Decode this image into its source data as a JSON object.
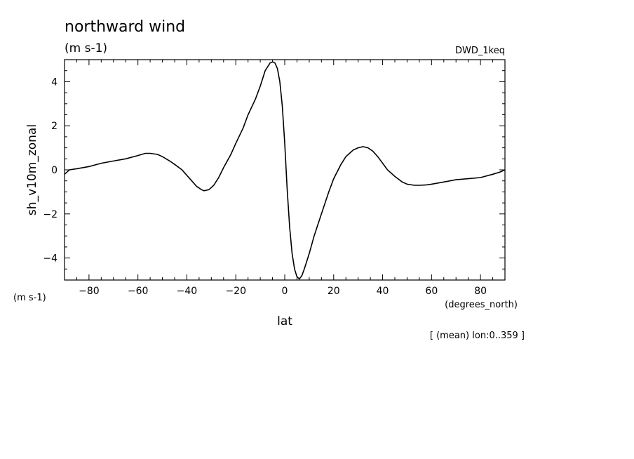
{
  "chart_data": {
    "type": "line",
    "title": "northward wind",
    "title_units": "(m s-1)",
    "dataset_label": "DWD_1keq",
    "ylabel": "sh_v10m_zonal",
    "y_units": "(m s-1)",
    "xlabel": "lat",
    "x_units": "(degrees_north)",
    "footnote": "[ (mean) lon:0..359 ]",
    "xlim": [
      -90,
      90
    ],
    "ylim": [
      -5,
      5
    ],
    "x_ticks": [
      -80,
      -60,
      -40,
      -20,
      0,
      20,
      40,
      60,
      80
    ],
    "y_ticks": [
      -4,
      -2,
      0,
      2,
      4
    ],
    "grid": false,
    "legend": "none",
    "line_color": "#000000",
    "x": [
      -90,
      -88,
      -85,
      -80,
      -75,
      -70,
      -65,
      -60,
      -57,
      -55,
      -52,
      -50,
      -47,
      -45,
      -42,
      -40,
      -38,
      -36,
      -34,
      -33,
      -31,
      -29,
      -27,
      -25,
      -22,
      -20,
      -17,
      -15,
      -12,
      -10,
      -8,
      -6,
      -5,
      -4,
      -3,
      -2,
      -1,
      0,
      1,
      2,
      3,
      4,
      5,
      6,
      7,
      8,
      10,
      12,
      15,
      18,
      20,
      23,
      25,
      28,
      30,
      32,
      34,
      36,
      38,
      40,
      42,
      45,
      48,
      50,
      53,
      55,
      58,
      60,
      65,
      70,
      75,
      80,
      85,
      88,
      90
    ],
    "values": [
      -0.2,
      0.0,
      0.05,
      0.15,
      0.3,
      0.4,
      0.5,
      0.65,
      0.75,
      0.75,
      0.7,
      0.6,
      0.4,
      0.25,
      0.0,
      -0.25,
      -0.5,
      -0.75,
      -0.9,
      -0.95,
      -0.9,
      -0.7,
      -0.35,
      0.1,
      0.7,
      1.2,
      1.9,
      2.5,
      3.2,
      3.8,
      4.5,
      4.85,
      4.9,
      4.85,
      4.6,
      4.0,
      2.9,
      1.2,
      -0.9,
      -2.6,
      -3.8,
      -4.5,
      -4.85,
      -4.95,
      -4.8,
      -4.5,
      -3.8,
      -3.0,
      -2.0,
      -1.0,
      -0.4,
      0.25,
      0.6,
      0.9,
      1.0,
      1.05,
      1.0,
      0.85,
      0.6,
      0.3,
      0.0,
      -0.3,
      -0.55,
      -0.65,
      -0.7,
      -0.7,
      -0.68,
      -0.65,
      -0.55,
      -0.45,
      -0.4,
      -0.35,
      -0.2,
      -0.1,
      0.0
    ]
  }
}
